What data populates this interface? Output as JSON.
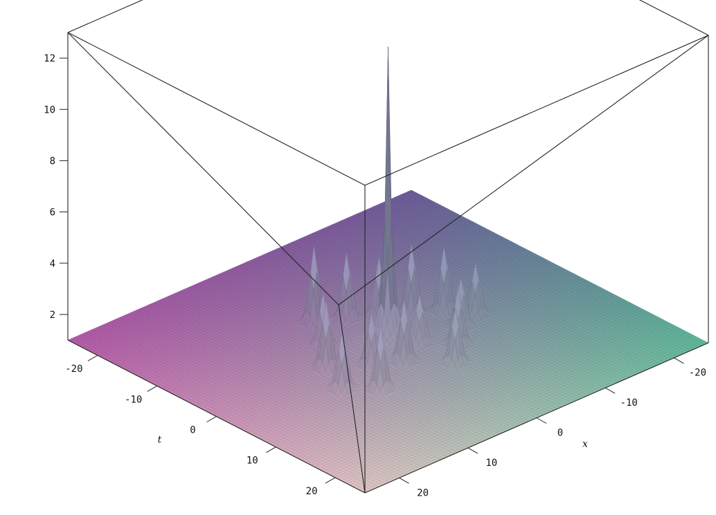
{
  "chart_data": {
    "type": "surface3d",
    "title": "",
    "axes": {
      "x": {
        "label": "x",
        "range": [
          -25,
          25
        ],
        "ticks": [
          -20,
          -10,
          0,
          10,
          20
        ]
      },
      "t": {
        "label": "t",
        "range": [
          -25,
          25
        ],
        "ticks": [
          -20,
          -10,
          0,
          10,
          20
        ]
      },
      "z": {
        "label": "",
        "range": [
          1,
          13
        ],
        "ticks": [
          2,
          4,
          6,
          8,
          10,
          12
        ]
      }
    },
    "baseline": 1,
    "grid": false,
    "box": true,
    "surface_colors": {
      "near_left": "#e0c7c5",
      "far_left": "#b45aa8",
      "far_right": "#6b5b98",
      "near_right": "#5fb89a",
      "peak": "#b8bde8"
    },
    "features": {
      "main_peak": {
        "x": 0,
        "t": 0,
        "height": 12.5
      },
      "small_peaks": [
        {
          "x": -3,
          "t": -9,
          "height": 4.0
        },
        {
          "x": 0,
          "t": -7,
          "height": 3.6
        },
        {
          "x": 3,
          "t": -5,
          "height": 3.3
        },
        {
          "x": 6,
          "t": -3,
          "height": 3.7
        },
        {
          "x": 9,
          "t": -1,
          "height": 3.5
        },
        {
          "x": -6,
          "t": -4,
          "height": 3.1
        },
        {
          "x": -9,
          "t": 0,
          "height": 3.6
        },
        {
          "x": -5,
          "t": 3,
          "height": 3.0
        },
        {
          "x": -2,
          "t": 5,
          "height": 3.4
        },
        {
          "x": 2,
          "t": 3,
          "height": 2.8
        },
        {
          "x": 5,
          "t": 6,
          "height": 3.2
        },
        {
          "x": 8,
          "t": 3,
          "height": 2.9
        },
        {
          "x": -11,
          "t": 5,
          "height": 3.3
        },
        {
          "x": -8,
          "t": 8,
          "height": 3.5
        },
        {
          "x": 2,
          "t": 9,
          "height": 3.1
        },
        {
          "x": 11,
          "t": 2,
          "height": 3.0
        }
      ]
    }
  }
}
